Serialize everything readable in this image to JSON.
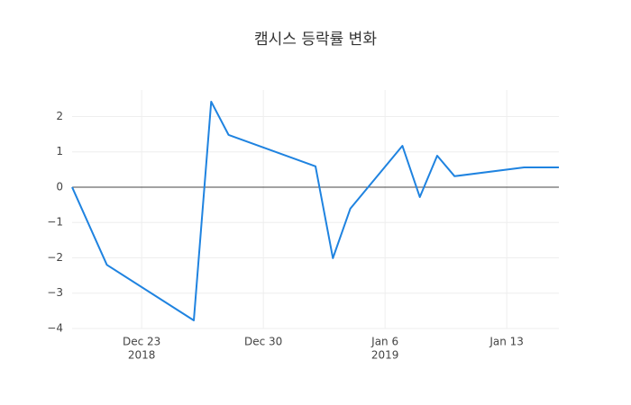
{
  "chart_data": {
    "type": "line",
    "title": "캠시스 등락률 변화",
    "x": [
      "2018-12-19",
      "2018-12-21",
      "2018-12-26",
      "2018-12-27",
      "2018-12-28",
      "2019-01-02",
      "2019-01-03",
      "2019-01-04",
      "2019-01-07",
      "2019-01-08",
      "2019-01-09",
      "2019-01-10",
      "2019-01-14",
      "2019-01-15",
      "2019-01-16"
    ],
    "values": [
      0.0,
      -2.2,
      -3.77,
      2.42,
      1.48,
      0.59,
      -2.01,
      -0.61,
      1.17,
      -0.28,
      0.89,
      0.31,
      0.56,
      0.56,
      0.56
    ],
    "color": "#1f83e0",
    "xlim": [
      "2018-12-19",
      "2019-01-16"
    ],
    "xticks": [
      {
        "value": "2018-12-23",
        "label": "Dec 23",
        "year": "2018"
      },
      {
        "value": "2018-12-30",
        "label": "Dec 30"
      },
      {
        "value": "2019-01-06",
        "label": "Jan 6",
        "year": "2019"
      },
      {
        "value": "2019-01-13",
        "label": "Jan 13"
      }
    ],
    "ylim": [
      -4,
      2.75
    ],
    "yticks": [
      {
        "value": -4,
        "label": "−4"
      },
      {
        "value": -3,
        "label": "−3"
      },
      {
        "value": -2,
        "label": "−2"
      },
      {
        "value": -1,
        "label": "−1"
      },
      0,
      1,
      2
    ],
    "grid": true,
    "zeroline": true
  }
}
